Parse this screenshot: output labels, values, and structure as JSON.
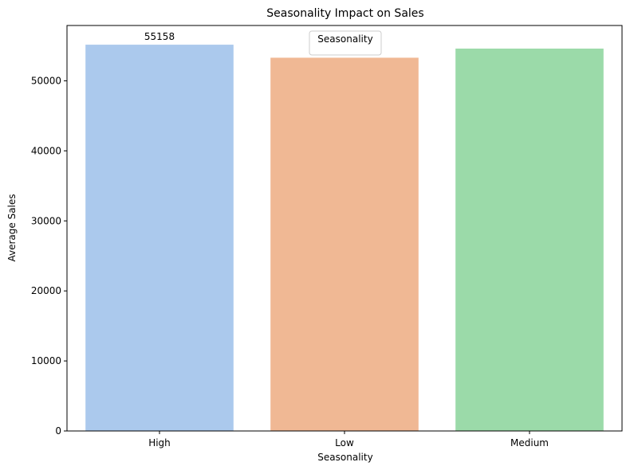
{
  "chart_data": {
    "type": "bar",
    "title": "Seasonality Impact on Sales",
    "xlabel": "Seasonality",
    "ylabel": "Average Sales",
    "categories": [
      "High",
      "Low",
      "Medium"
    ],
    "values": [
      55158,
      53300,
      54600
    ],
    "colors": [
      "#abc9ed",
      "#f0b894",
      "#9bdaa9"
    ],
    "data_labels": [
      "55158",
      "",
      ""
    ],
    "ylim": [
      0,
      57900
    ],
    "yticks": [
      0,
      10000,
      20000,
      30000,
      40000,
      50000
    ],
    "legend": {
      "title": "Seasonality",
      "placement": "top-center"
    },
    "grid": false
  }
}
